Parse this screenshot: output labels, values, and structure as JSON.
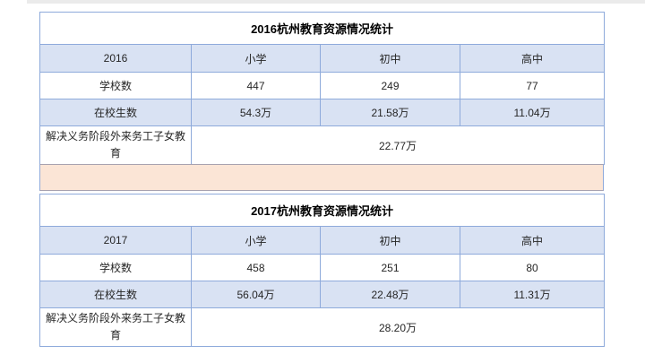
{
  "page": {
    "background": "#ffffff"
  },
  "colors": {
    "table_border": "#8EAADB",
    "shaded_row_fill": "#D9E2F3",
    "separator_fill": "#FBE5D6",
    "separator_border": "#A8A2B0",
    "page_top_edge": "#ebebeb",
    "text": "#262626",
    "title_text": "#000000"
  },
  "tables": [
    {
      "title": "2016杭州教育资源情况统计",
      "columns": [
        "2016",
        "小学",
        "初中",
        "高中"
      ],
      "rows": [
        {
          "label": "学校数",
          "values": [
            "447",
            "249",
            "77"
          ]
        },
        {
          "label": "在校生数",
          "values": [
            "54.3万",
            "21.58万",
            "11.04万"
          ]
        },
        {
          "label": "解决义务阶段外来务工子女教育",
          "merged_value": "22.77万"
        }
      ]
    },
    {
      "title": "2017杭州教育资源情况统计",
      "columns": [
        "2017",
        "小学",
        "初中",
        "高中"
      ],
      "rows": [
        {
          "label": "学校数",
          "values": [
            "458",
            "251",
            "80"
          ]
        },
        {
          "label": "在校生数",
          "values": [
            "56.04万",
            "22.48万",
            "11.31万"
          ]
        },
        {
          "label": "解决义务阶段外来务工子女教育",
          "merged_value": "28.20万"
        }
      ]
    }
  ]
}
